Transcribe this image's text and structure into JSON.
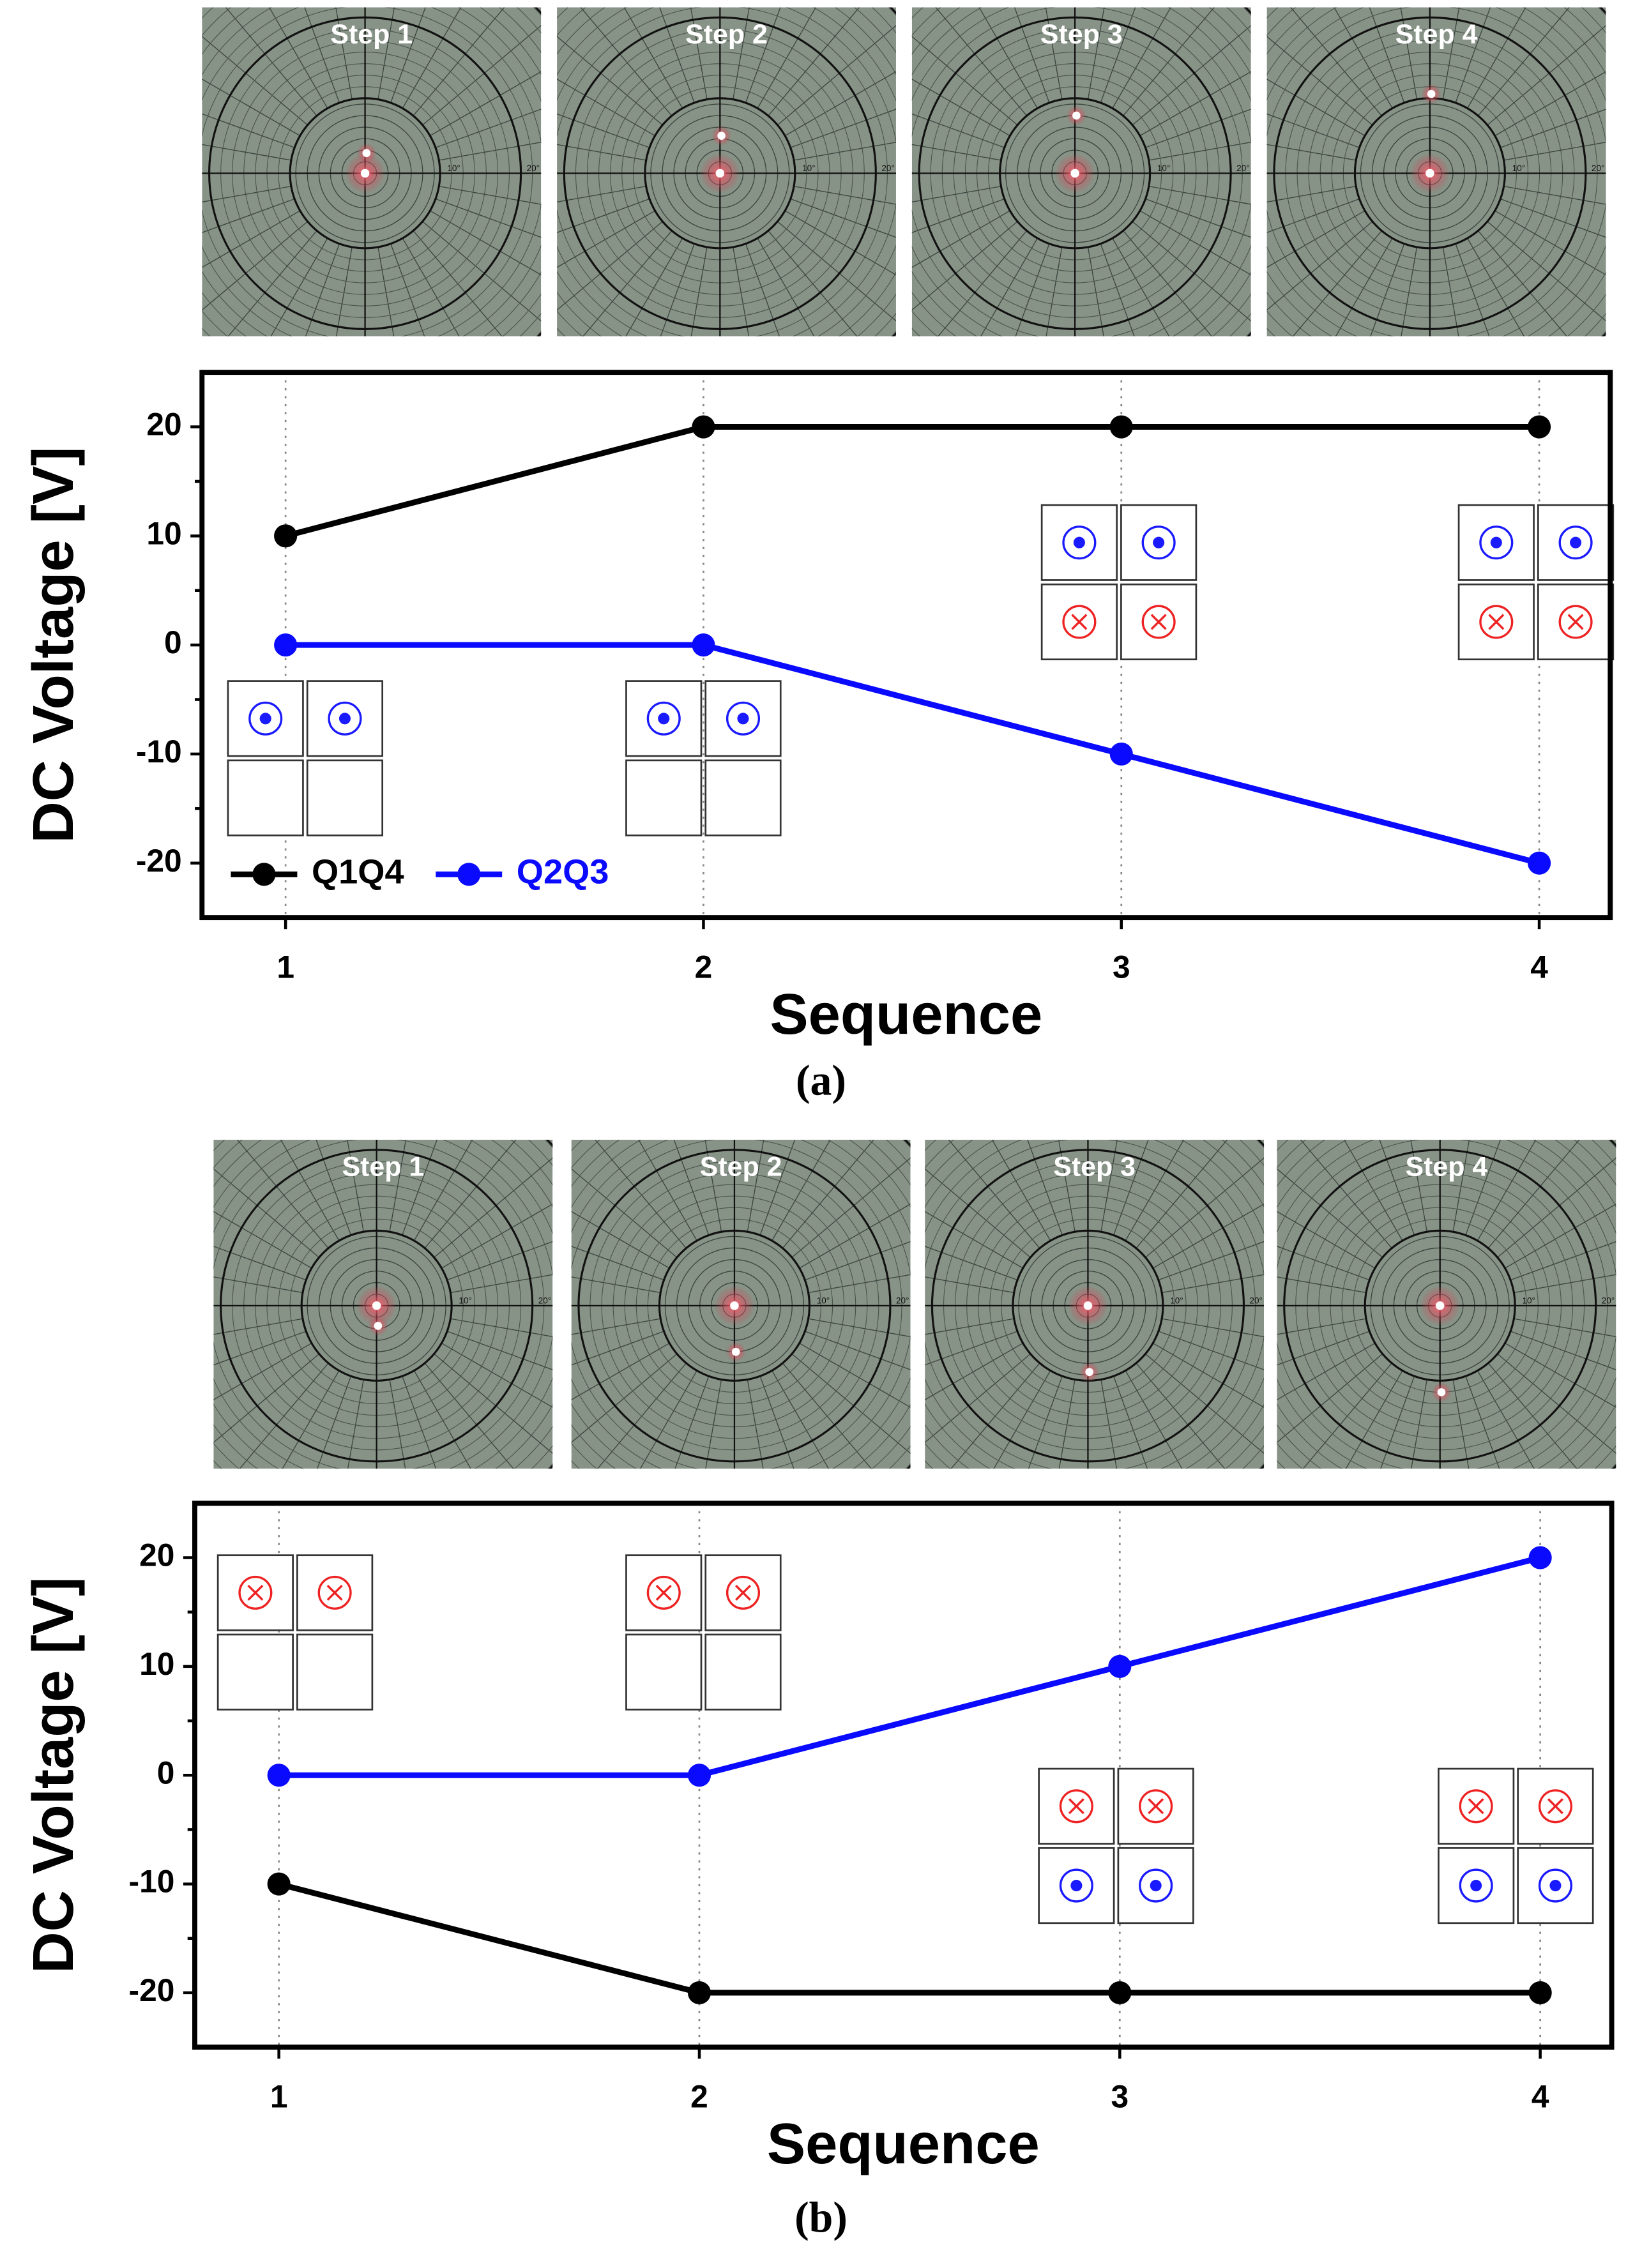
{
  "chart_data": [
    {
      "type": "line",
      "panel_labels": [
        "Step 1",
        "Step 2",
        "Step 3",
        "Step 4"
      ],
      "photo_scale_labels": [
        "10°",
        "20°"
      ],
      "x": [
        1,
        2,
        3,
        4
      ],
      "xlim": [
        0.8,
        4.17
      ],
      "xticks": [
        1,
        2,
        3,
        4
      ],
      "ylim": [
        -25,
        25
      ],
      "yticks": [
        -20,
        -10,
        0,
        10,
        20
      ],
      "xgrid": true,
      "xlabel": "Sequence",
      "ylabel": "DC Voltage [V]",
      "legend": "lower left",
      "series": [
        {
          "name": "Q1Q4",
          "color": "#000000",
          "values": [
            10,
            20,
            20,
            20
          ]
        },
        {
          "name": "Q2Q3",
          "color": "#0a0aff",
          "values": [
            0,
            0,
            -10,
            -20
          ]
        }
      ],
      "caption": "(a)"
    },
    {
      "type": "line",
      "panel_labels": [
        "Step 1",
        "Step 2",
        "Step 3",
        "Step 4"
      ],
      "photo_scale_labels": [
        "10°",
        "20°"
      ],
      "x": [
        1,
        2,
        3,
        4
      ],
      "xlim": [
        0.8,
        4.17
      ],
      "xticks": [
        1,
        2,
        3,
        4
      ],
      "ylim": [
        -25,
        25
      ],
      "yticks": [
        -20,
        -10,
        0,
        10,
        20
      ],
      "xgrid": true,
      "xlabel": "Sequence",
      "ylabel": "DC Voltage [V]",
      "series": [
        {
          "color": "#000000",
          "values": [
            -10,
            -20,
            -20,
            -20
          ]
        },
        {
          "color": "#0a0aff",
          "values": [
            0,
            0,
            10,
            20
          ]
        }
      ],
      "caption": "(b)"
    }
  ]
}
